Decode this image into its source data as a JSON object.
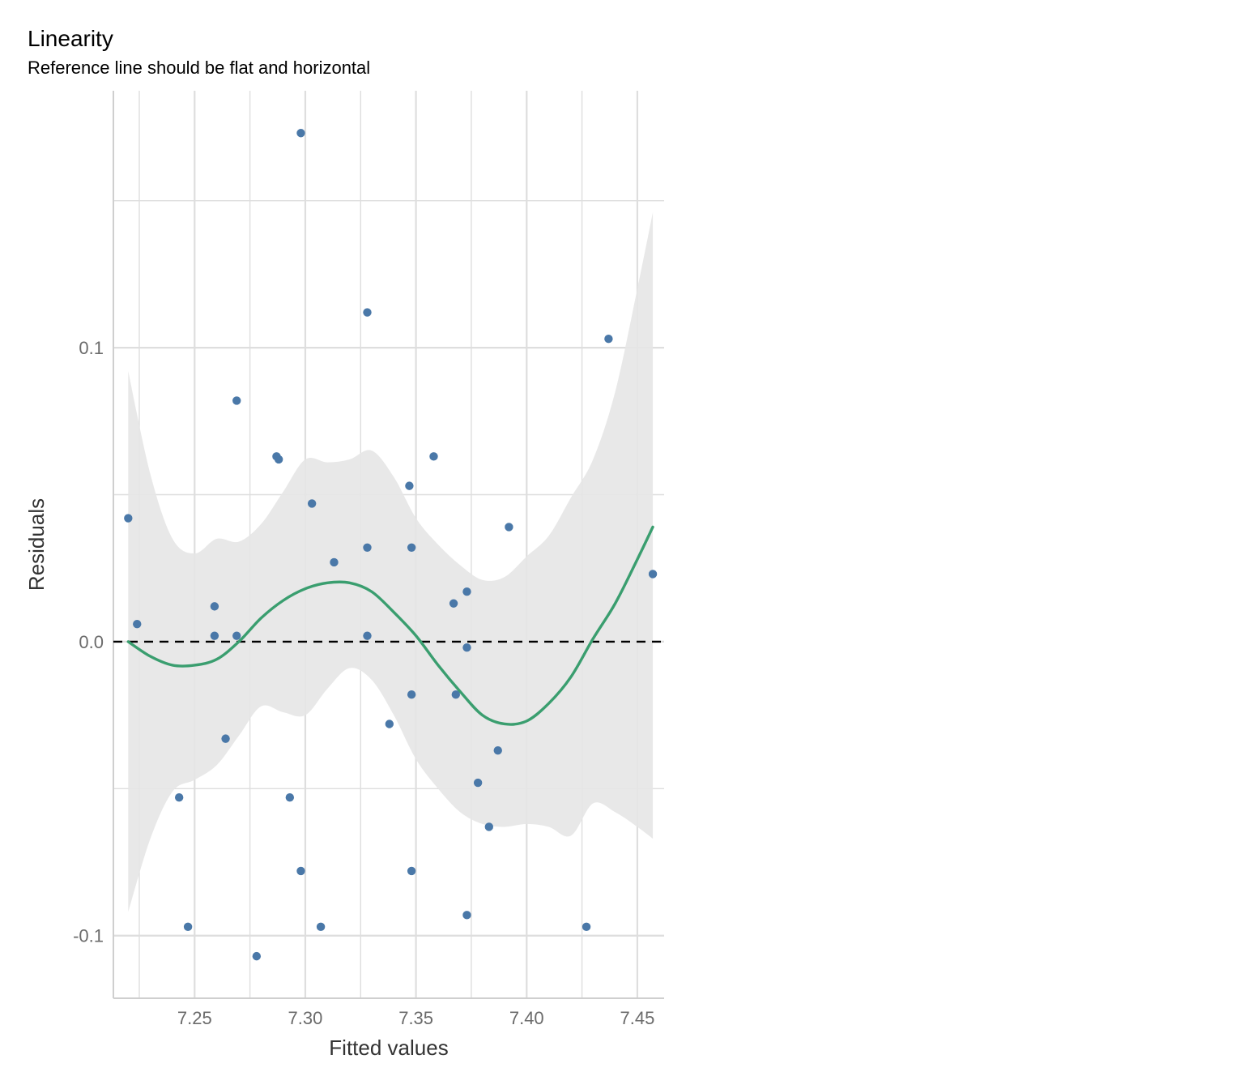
{
  "chart_data": {
    "type": "scatter",
    "title": "Linearity",
    "subtitle": "Reference line should be flat and horizontal",
    "xlabel": "Fitted values",
    "ylabel": "Residuals",
    "xlim": [
      7.2133,
      7.4621
    ],
    "ylim": [
      -0.1213,
      0.1874
    ],
    "x_ticks": [
      7.25,
      7.3,
      7.35,
      7.4,
      7.45
    ],
    "x_tick_labels": [
      "7.25",
      "7.30",
      "7.35",
      "7.40",
      "7.45"
    ],
    "y_ticks": [
      -0.1,
      0.0,
      0.1
    ],
    "y_tick_labels": [
      "-0.1",
      "0.0",
      "0.1"
    ],
    "grid": true,
    "colors": {
      "points": "#4a78a8",
      "smooth_line": "#3a9e6f",
      "ci_band": "#e6e6e6",
      "reference_line": "#000000",
      "grid": "#dedede"
    },
    "points": [
      {
        "x": 7.22,
        "y": 0.042
      },
      {
        "x": 7.224,
        "y": 0.006
      },
      {
        "x": 7.243,
        "y": -0.053
      },
      {
        "x": 7.247,
        "y": -0.097
      },
      {
        "x": 7.259,
        "y": 0.012
      },
      {
        "x": 7.259,
        "y": 0.002
      },
      {
        "x": 7.264,
        "y": -0.033
      },
      {
        "x": 7.269,
        "y": 0.082
      },
      {
        "x": 7.269,
        "y": 0.002
      },
      {
        "x": 7.278,
        "y": -0.107
      },
      {
        "x": 7.287,
        "y": 0.063
      },
      {
        "x": 7.288,
        "y": 0.062
      },
      {
        "x": 7.293,
        "y": -0.053
      },
      {
        "x": 7.298,
        "y": 0.173
      },
      {
        "x": 7.298,
        "y": -0.078
      },
      {
        "x": 7.303,
        "y": 0.047
      },
      {
        "x": 7.307,
        "y": -0.097
      },
      {
        "x": 7.313,
        "y": 0.027
      },
      {
        "x": 7.328,
        "y": 0.112
      },
      {
        "x": 7.328,
        "y": 0.032
      },
      {
        "x": 7.328,
        "y": 0.002
      },
      {
        "x": 7.338,
        "y": -0.028
      },
      {
        "x": 7.347,
        "y": 0.053
      },
      {
        "x": 7.348,
        "y": 0.032
      },
      {
        "x": 7.348,
        "y": -0.018
      },
      {
        "x": 7.348,
        "y": -0.078
      },
      {
        "x": 7.358,
        "y": 0.063
      },
      {
        "x": 7.367,
        "y": 0.013
      },
      {
        "x": 7.368,
        "y": -0.018
      },
      {
        "x": 7.373,
        "y": 0.017
      },
      {
        "x": 7.373,
        "y": -0.002
      },
      {
        "x": 7.373,
        "y": -0.093
      },
      {
        "x": 7.378,
        "y": -0.048
      },
      {
        "x": 7.383,
        "y": -0.063
      },
      {
        "x": 7.387,
        "y": -0.037
      },
      {
        "x": 7.392,
        "y": 0.039
      },
      {
        "x": 7.427,
        "y": -0.097
      },
      {
        "x": 7.437,
        "y": 0.103
      },
      {
        "x": 7.457,
        "y": 0.023
      }
    ],
    "smooth": {
      "x": [
        7.22,
        7.23,
        7.24,
        7.25,
        7.26,
        7.27,
        7.28,
        7.29,
        7.3,
        7.31,
        7.32,
        7.33,
        7.34,
        7.35,
        7.36,
        7.37,
        7.38,
        7.39,
        7.4,
        7.41,
        7.42,
        7.43,
        7.44,
        7.45,
        7.457
      ],
      "y": [
        0.0,
        -0.005,
        -0.008,
        -0.008,
        -0.006,
        0.0,
        0.008,
        0.014,
        0.018,
        0.02,
        0.02,
        0.017,
        0.01,
        0.002,
        -0.008,
        -0.017,
        -0.025,
        -0.028,
        -0.027,
        -0.021,
        -0.012,
        0.001,
        0.013,
        0.028,
        0.039
      ],
      "lower": [
        -0.092,
        -0.067,
        -0.051,
        -0.047,
        -0.042,
        -0.032,
        -0.022,
        -0.024,
        -0.025,
        -0.016,
        -0.009,
        -0.013,
        -0.025,
        -0.04,
        -0.05,
        -0.058,
        -0.062,
        -0.063,
        -0.062,
        -0.063,
        -0.066,
        -0.055,
        -0.058,
        -0.063,
        -0.067
      ],
      "upper": [
        0.092,
        0.057,
        0.035,
        0.03,
        0.035,
        0.034,
        0.04,
        0.051,
        0.062,
        0.061,
        0.062,
        0.065,
        0.056,
        0.042,
        0.033,
        0.026,
        0.021,
        0.022,
        0.029,
        0.036,
        0.049,
        0.062,
        0.085,
        0.12,
        0.146
      ]
    },
    "reference_y": 0.0
  }
}
